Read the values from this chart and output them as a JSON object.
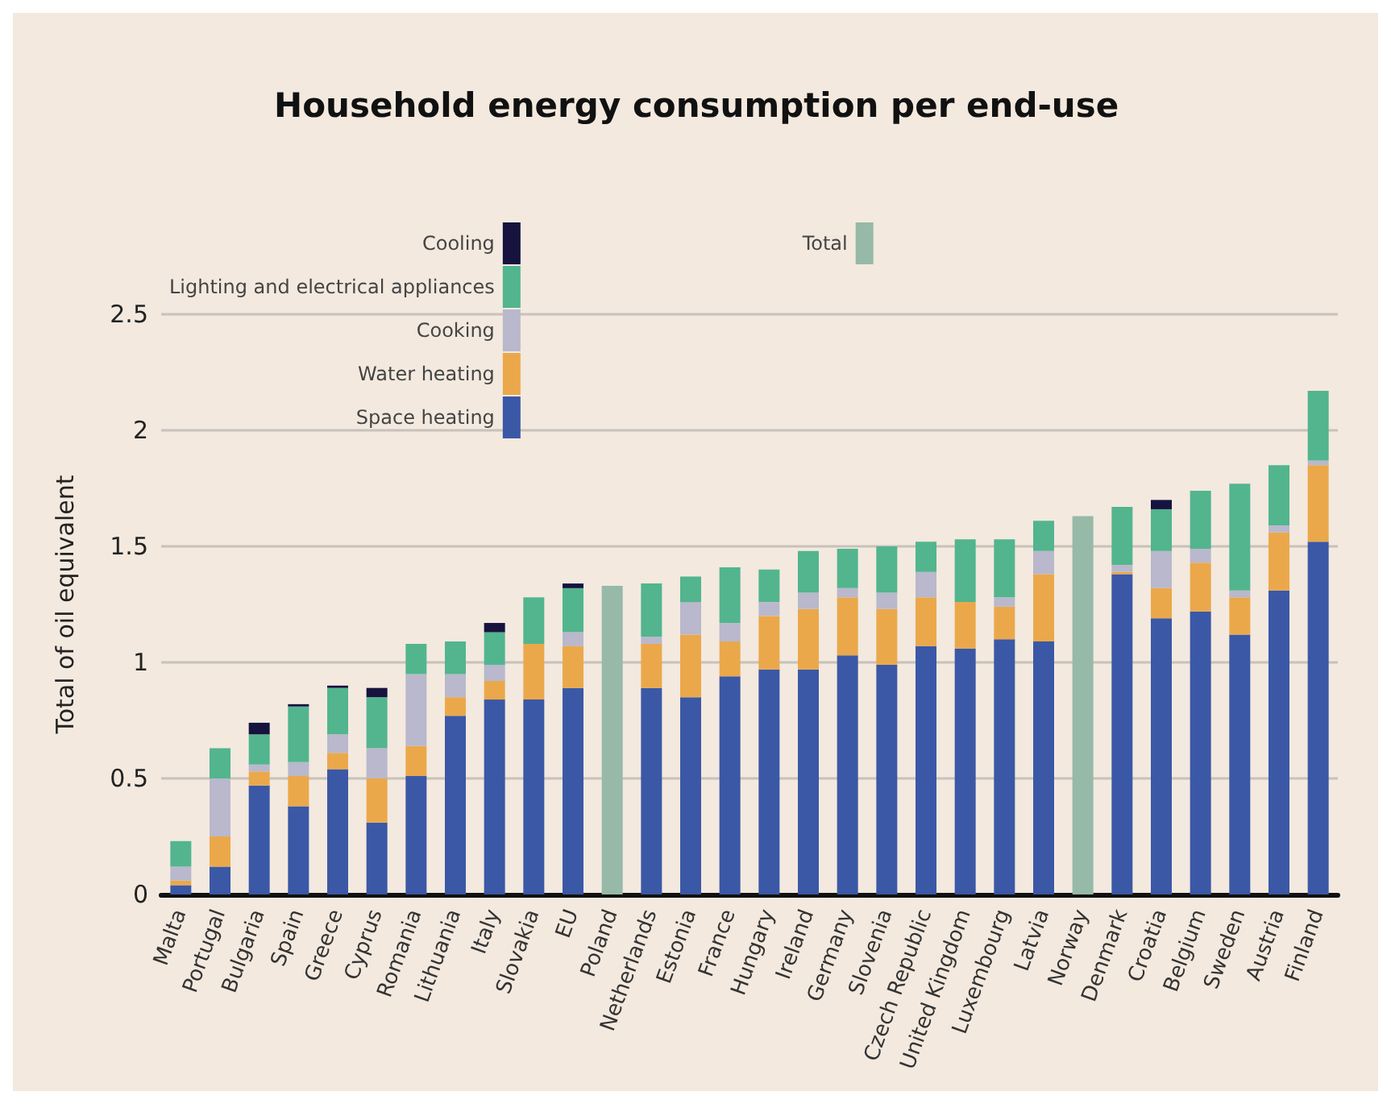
{
  "chart_data": {
    "type": "bar",
    "title": "Household energy consumption per end-use",
    "ylabel": "Total of oil equivalent",
    "stacked": true,
    "grid": "y",
    "legend": "top left",
    "categories": [
      "Malta",
      "Portugal",
      "Bulgaria",
      "Spain",
      "Greece",
      "Cyprus",
      "Romania",
      "Lithuania",
      "Italy",
      "Slovakia",
      "EU",
      "Poland",
      "Netherlands",
      "Estonia",
      "France",
      "Hungary",
      "Ireland",
      "Germany",
      "Slovenia",
      "Czech Republic",
      "United Kingdom",
      "Luxembourg",
      "Latvia",
      "Norway",
      "Denmark",
      "Croatia",
      "Belgium",
      "Sweden",
      "Austria",
      "Finland"
    ],
    "ylim": [
      0,
      2.5
    ],
    "yticks": [
      0,
      0.5,
      1,
      1.5,
      2,
      2.5
    ],
    "series": [
      {
        "name": "Space heating",
        "color": "#3b58a6",
        "values": [
          0.04,
          0.12,
          0.47,
          0.38,
          0.54,
          0.31,
          0.51,
          0.77,
          0.84,
          0.84,
          0.89,
          null,
          0.89,
          0.85,
          0.94,
          0.97,
          0.97,
          1.03,
          0.99,
          1.07,
          1.06,
          1.1,
          1.09,
          null,
          1.38,
          1.19,
          1.22,
          1.12,
          1.31,
          1.52
        ]
      },
      {
        "name": "Water heating",
        "color": "#eba84a",
        "values": [
          0.02,
          0.13,
          0.06,
          0.13,
          0.07,
          0.19,
          0.13,
          0.08,
          0.08,
          0.24,
          0.18,
          null,
          0.19,
          0.27,
          0.15,
          0.23,
          0.26,
          0.25,
          0.24,
          0.21,
          0.2,
          0.14,
          0.29,
          null,
          0.01,
          0.13,
          0.21,
          0.16,
          0.25,
          0.33
        ]
      },
      {
        "name": "Cooking",
        "color": "#b9b8cc",
        "values": [
          0.06,
          0.25,
          0.03,
          0.06,
          0.08,
          0.13,
          0.31,
          0.1,
          0.07,
          null,
          0.06,
          null,
          0.03,
          0.14,
          0.08,
          0.06,
          0.07,
          0.04,
          0.07,
          0.11,
          null,
          0.04,
          0.1,
          null,
          0.03,
          0.16,
          0.06,
          0.03,
          0.03,
          0.02
        ]
      },
      {
        "name": "Lighting and electrical appliances",
        "color": "#52b58e",
        "values": [
          0.11,
          0.13,
          0.13,
          0.24,
          0.2,
          0.22,
          0.13,
          0.14,
          0.14,
          0.2,
          0.19,
          null,
          0.23,
          0.11,
          0.24,
          0.14,
          0.18,
          0.17,
          0.2,
          0.13,
          0.27,
          0.25,
          0.13,
          null,
          0.25,
          0.18,
          0.25,
          0.46,
          0.26,
          0.3
        ]
      },
      {
        "name": "Cooling",
        "color": "#16133f",
        "values": [
          null,
          null,
          0.05,
          0.01,
          0.01,
          0.04,
          null,
          null,
          0.04,
          null,
          0.02,
          null,
          null,
          null,
          null,
          null,
          null,
          null,
          null,
          null,
          null,
          null,
          null,
          null,
          null,
          0.04,
          null,
          null,
          null,
          null
        ]
      },
      {
        "name": "Total",
        "color": "#97b9a8",
        "values": [
          null,
          null,
          null,
          null,
          null,
          null,
          null,
          null,
          null,
          null,
          null,
          1.33,
          null,
          null,
          null,
          null,
          null,
          null,
          null,
          null,
          null,
          null,
          null,
          1.63,
          null,
          null,
          null,
          null,
          null,
          null
        ]
      }
    ]
  }
}
